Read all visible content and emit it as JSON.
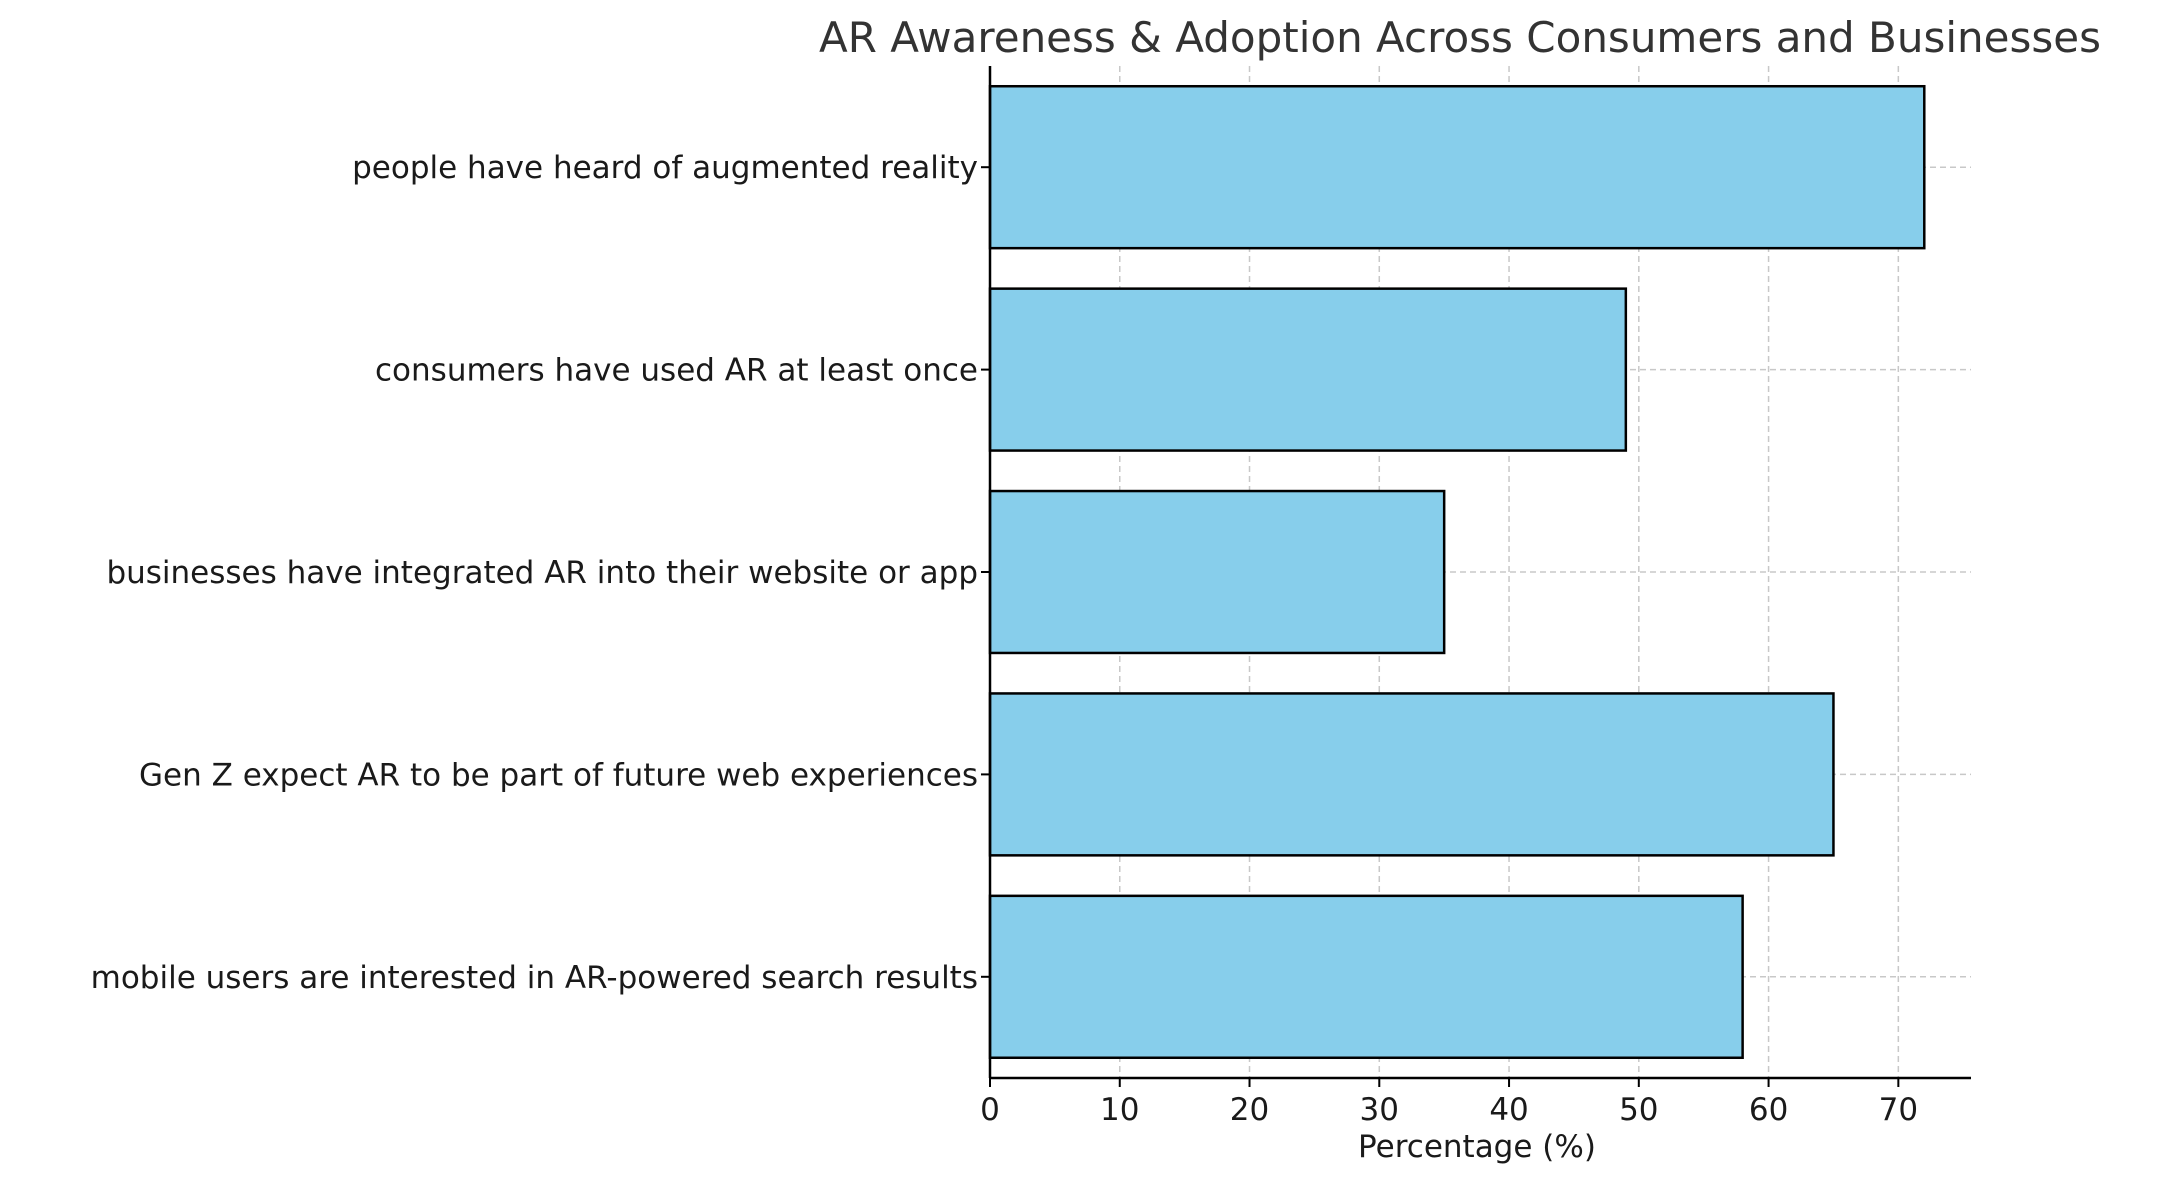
{
  "chart_data": {
    "type": "bar",
    "orientation": "horizontal",
    "title": "AR Awareness & Adoption Across Consumers and Businesses",
    "xlabel": "Percentage (%)",
    "ylabel": "",
    "categories": [
      "people have heard of augmented reality",
      "consumers have used AR at least once",
      "businesses have integrated AR into their website or app",
      "Gen Z expect AR to be part of future web experiences",
      "mobile users are interested in AR-powered search results"
    ],
    "values": [
      72,
      49,
      35,
      65,
      58
    ],
    "xlim": [
      0,
      75.6
    ],
    "xticks": [
      0,
      10,
      20,
      30,
      40,
      50,
      60,
      70
    ],
    "grid": true,
    "bar_color": "#87CEEB",
    "bar_edge_color": "#000000",
    "grid_color": "#c8c8c8"
  }
}
